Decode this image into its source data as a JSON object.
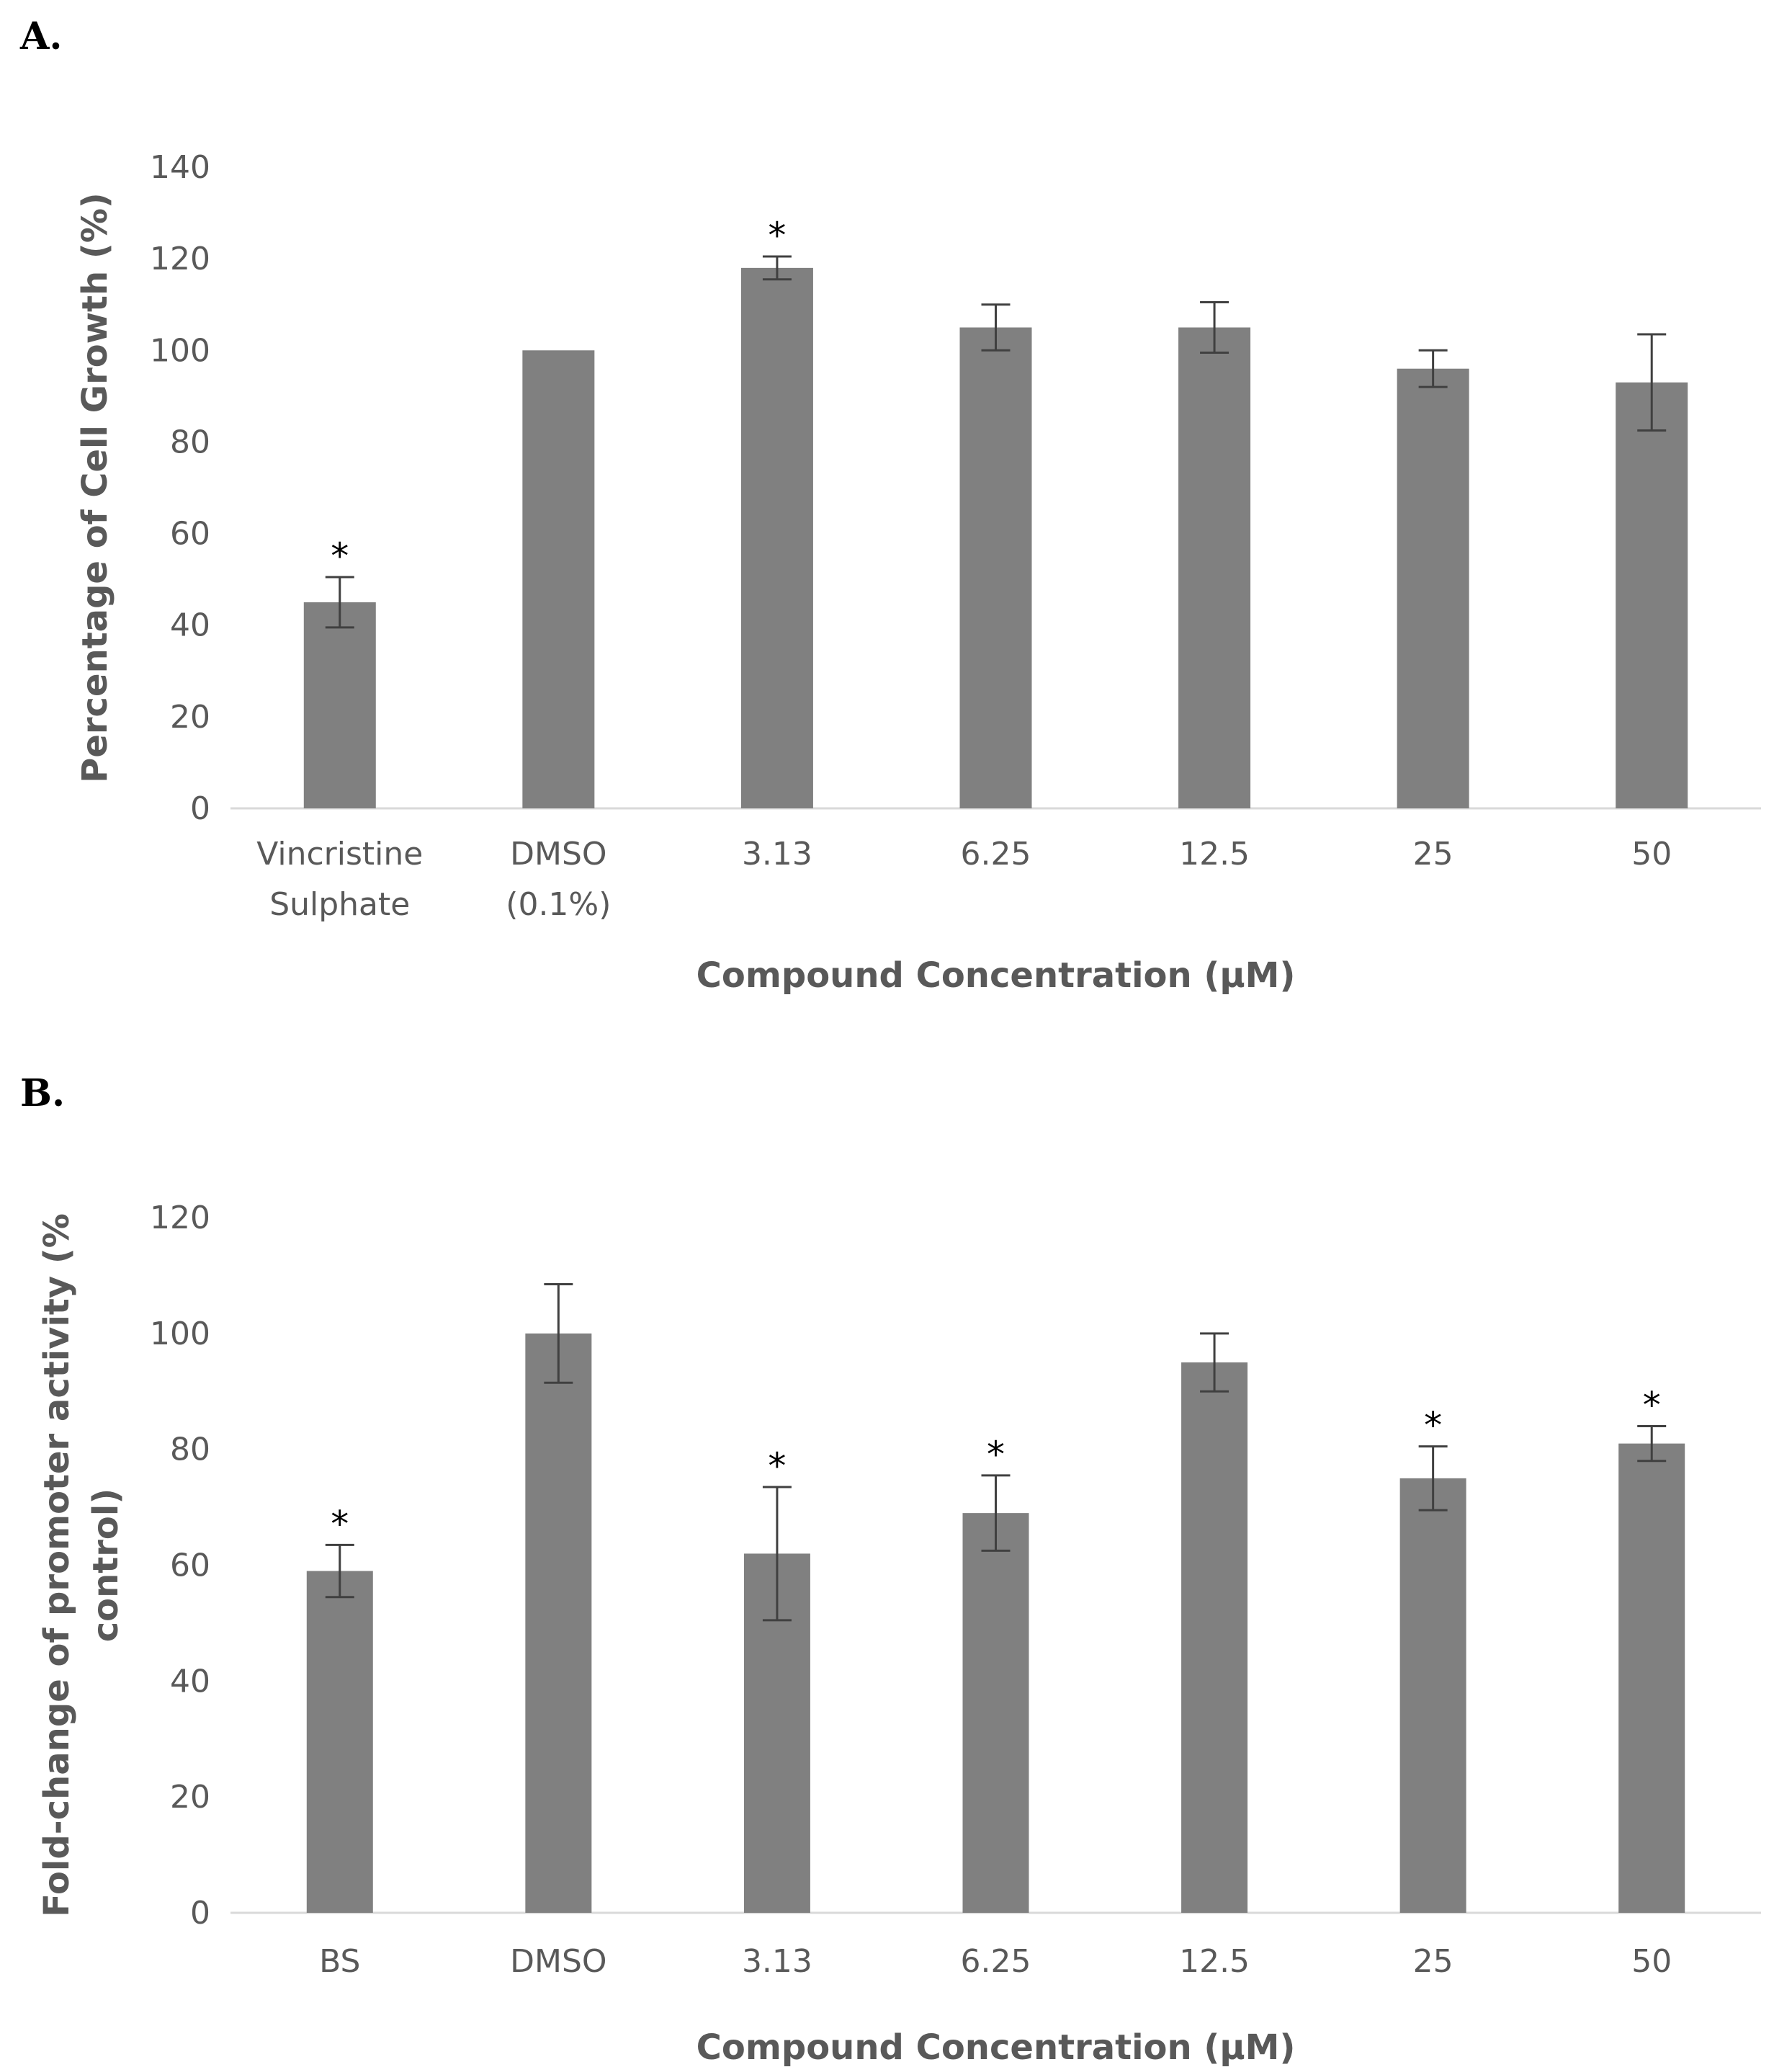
{
  "chart_data": [
    {
      "panel_label": "A.",
      "type": "bar",
      "categories": [
        [
          "Vincristine",
          "Sulphate"
        ],
        [
          "DMSO",
          "(0.1%)"
        ],
        [
          "3.13"
        ],
        [
          "6.25"
        ],
        [
          "12.5"
        ],
        [
          "25"
        ],
        [
          "50"
        ]
      ],
      "values": [
        45,
        100,
        118,
        105,
        105,
        96,
        93
      ],
      "errors": [
        5.5,
        0,
        2.5,
        5,
        5.5,
        4,
        10.5
      ],
      "significance": [
        "*",
        "",
        "*",
        "",
        "",
        "",
        ""
      ],
      "xlabel": "Compound Concentration (µM)",
      "ylabel": "Percentage of Cell Growth (%)",
      "ylim": [
        0,
        140
      ],
      "yticks": [
        "0",
        "20",
        "40",
        "60",
        "80",
        "100",
        "120",
        "140"
      ],
      "bar_color": "#808080",
      "grid": false
    },
    {
      "panel_label": "B.",
      "type": "bar",
      "categories": [
        [
          "BS"
        ],
        [
          "DMSO"
        ],
        [
          "3.13"
        ],
        [
          "6.25"
        ],
        [
          "12.5"
        ],
        [
          "25"
        ],
        [
          "50"
        ]
      ],
      "values": [
        59,
        100,
        62,
        69,
        95,
        75,
        81
      ],
      "errors": [
        4.5,
        8.5,
        11.5,
        6.5,
        5,
        5.5,
        3
      ],
      "significance": [
        "*",
        "",
        "*",
        "*",
        "",
        "*",
        "*"
      ],
      "xlabel": "Compound Concentration (µM)",
      "ylabel": [
        "Fold-change of promoter activity (%",
        "control)"
      ],
      "ylim": [
        0,
        120
      ],
      "yticks": [
        "0",
        "20",
        "40",
        "60",
        "80",
        "100",
        "120"
      ],
      "bar_color": "#808080",
      "grid": false
    }
  ]
}
